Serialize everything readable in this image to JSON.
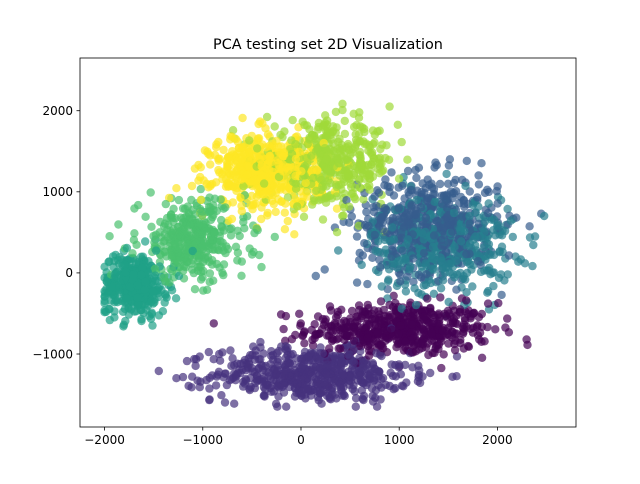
{
  "chart_data": {
    "type": "scatter",
    "title": "PCA testing set 2D Visualization",
    "xlabel": "",
    "ylabel": "",
    "xlim": [
      -2250,
      2800
    ],
    "ylim": [
      -1900,
      2650
    ],
    "xticks": [
      -2000,
      -1000,
      0,
      1000,
      2000
    ],
    "yticks": [
      -1000,
      0,
      1000,
      2000
    ],
    "xtick_labels": [
      "−2000",
      "−1000",
      "0",
      "1000",
      "2000"
    ],
    "ytick_labels": [
      "−1000",
      "0",
      "1000",
      "2000"
    ],
    "grid": false,
    "legend": "none",
    "colormap": "viridis",
    "marker_alpha": 0.7,
    "palette": [
      "#440154",
      "#46327e",
      "#365c8d",
      "#277f8e",
      "#1fa187",
      "#4ac16d",
      "#a0da39",
      "#fde725"
    ],
    "clusters": [
      {
        "class_index": 0,
        "color": "#440154",
        "center": [
          1000,
          -700
        ],
        "spread": [
          850,
          300
        ],
        "count": 520
      },
      {
        "class_index": 1,
        "color": "#46327e",
        "center": [
          100,
          -1250
        ],
        "spread": [
          900,
          300
        ],
        "count": 560
      },
      {
        "class_index": 2,
        "color": "#365c8d",
        "center": [
          1300,
          600
        ],
        "spread": [
          650,
          550
        ],
        "count": 520
      },
      {
        "class_index": 3,
        "color": "#277f8e",
        "center": [
          1450,
          350
        ],
        "spread": [
          650,
          550
        ],
        "count": 420
      },
      {
        "class_index": 4,
        "color": "#1fa187",
        "center": [
          -1700,
          -150
        ],
        "spread": [
          300,
          350
        ],
        "count": 360
      },
      {
        "class_index": 5,
        "color": "#4ac16d",
        "center": [
          -1100,
          400
        ],
        "spread": [
          500,
          450
        ],
        "count": 360
      },
      {
        "class_index": 6,
        "color": "#a0da39",
        "center": [
          300,
          1350
        ],
        "spread": [
          600,
          450
        ],
        "count": 420
      },
      {
        "class_index": 7,
        "color": "#fde725",
        "center": [
          -350,
          1250
        ],
        "spread": [
          500,
          400
        ],
        "count": 560
      }
    ],
    "extent": {
      "x": [
        -2000,
        2550
      ],
      "y": [
        -1650,
        2450
      ]
    }
  }
}
